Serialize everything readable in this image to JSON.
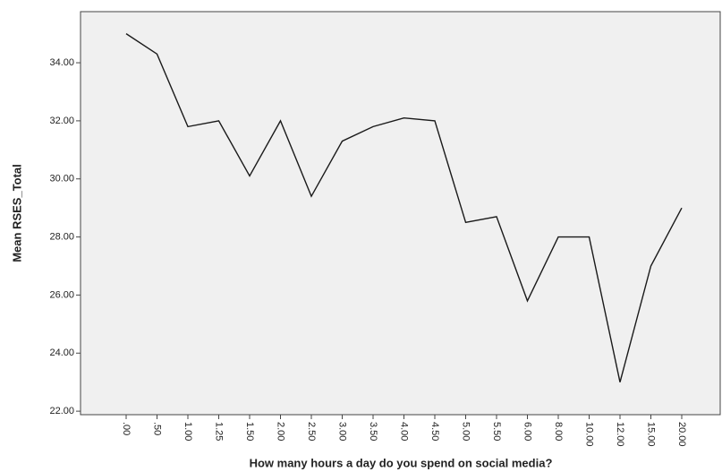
{
  "chart_data": {
    "type": "line",
    "x_label": "How many hours a day do you spend on social media?",
    "y_label": "Mean RSES_Total",
    "categories": [
      ".00",
      ".50",
      "1.00",
      "1.25",
      "1.50",
      "2.00",
      "2.50",
      "3.00",
      "3.50",
      "4.00",
      "4.50",
      "5.00",
      "5.50",
      "6.00",
      "8.00",
      "10.00",
      "12.00",
      "15.00",
      "20.00"
    ],
    "values": [
      35.0,
      34.3,
      31.8,
      32.0,
      30.1,
      32.0,
      29.4,
      31.3,
      31.8,
      32.1,
      32.0,
      28.5,
      28.7,
      25.8,
      28.0,
      28.0,
      23.0,
      27.0,
      29.0
    ],
    "color": "#1a1a1a",
    "ylim": [
      21.88,
      35.76
    ],
    "yticks": [
      {
        "value": 22,
        "label": "22.00"
      },
      {
        "value": 24,
        "label": "24.00"
      },
      {
        "value": 26,
        "label": "26.00"
      },
      {
        "value": 28,
        "label": "28.00"
      },
      {
        "value": 30,
        "label": "30.00"
      },
      {
        "value": 32,
        "label": "32.00"
      },
      {
        "value": 34,
        "label": "34.00"
      }
    ]
  }
}
